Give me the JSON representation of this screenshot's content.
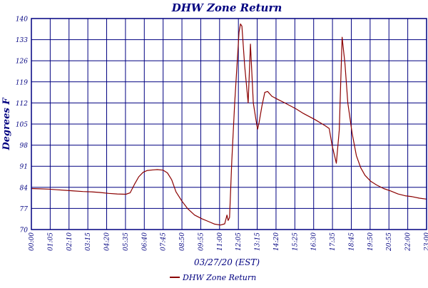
{
  "chart_data": {
    "type": "line",
    "title": "DHW Zone Return",
    "xlabel": "03/27/20 (EST)",
    "ylabel": "Degrees F",
    "x_unit": "HH:MM",
    "xlim": [
      "00:00",
      "23:00"
    ],
    "ylim": [
      70,
      140
    ],
    "yticks": [
      "70",
      "77",
      "84",
      "91",
      "98",
      "105",
      "112",
      "119",
      "126",
      "133",
      "140"
    ],
    "xticks": [
      "00:00",
      "01:05",
      "02:10",
      "03:15",
      "04:20",
      "05:35",
      "06:40",
      "07:45",
      "08:50",
      "09:55",
      "11:00",
      "12:05",
      "13:15",
      "14:20",
      "15:25",
      "16:30",
      "17:35",
      "18:45",
      "19:50",
      "20:55",
      "22:00",
      "23:00"
    ],
    "grid": true,
    "legend_position": "bottom-center",
    "colors": {
      "series": "#8b0000",
      "grid": "#000080",
      "text": "#000080"
    },
    "series": [
      {
        "name": "DHW Zone Return",
        "points": [
          [
            "00:00",
            83.6
          ],
          [
            "00:30",
            83.5
          ],
          [
            "01:00",
            83.4
          ],
          [
            "01:30",
            83.2
          ],
          [
            "02:00",
            83.0
          ],
          [
            "02:30",
            82.8
          ],
          [
            "03:00",
            82.6
          ],
          [
            "03:30",
            82.5
          ],
          [
            "04:00",
            82.3
          ],
          [
            "04:30",
            82.0
          ],
          [
            "05:00",
            81.8
          ],
          [
            "05:30",
            81.7
          ],
          [
            "05:45",
            82.2
          ],
          [
            "06:00",
            85.0
          ],
          [
            "06:15",
            87.5
          ],
          [
            "06:30",
            89.0
          ],
          [
            "06:45",
            89.6
          ],
          [
            "07:05",
            89.8
          ],
          [
            "07:20",
            89.9
          ],
          [
            "07:40",
            89.7
          ],
          [
            "07:55",
            88.8
          ],
          [
            "08:10",
            86.5
          ],
          [
            "08:25",
            82.5
          ],
          [
            "08:45",
            79.5
          ],
          [
            "09:05",
            77.0
          ],
          [
            "09:30",
            74.8
          ],
          [
            "09:55",
            73.6
          ],
          [
            "10:20",
            72.6
          ],
          [
            "10:40",
            71.8
          ],
          [
            "11:00",
            71.5
          ],
          [
            "11:15",
            71.9
          ],
          [
            "11:23",
            74.8
          ],
          [
            "11:27",
            73.0
          ],
          [
            "11:32",
            74.0
          ],
          [
            "11:40",
            93.0
          ],
          [
            "11:50",
            112.0
          ],
          [
            "12:05",
            135.5
          ],
          [
            "12:10",
            138.2
          ],
          [
            "12:15",
            137.5
          ],
          [
            "12:25",
            124.0
          ],
          [
            "12:37",
            112.0
          ],
          [
            "12:45",
            131.5
          ],
          [
            "12:55",
            112.0
          ],
          [
            "13:05",
            106.0
          ],
          [
            "13:10",
            103.3
          ],
          [
            "13:15",
            105.5
          ],
          [
            "13:25",
            111.0
          ],
          [
            "13:35",
            115.5
          ],
          [
            "13:45",
            115.8
          ],
          [
            "14:00",
            114.2
          ],
          [
            "14:20",
            113.2
          ],
          [
            "14:45",
            112.0
          ],
          [
            "15:25",
            110.0
          ],
          [
            "15:50",
            108.5
          ],
          [
            "16:30",
            106.5
          ],
          [
            "17:05",
            104.5
          ],
          [
            "17:20",
            103.5
          ],
          [
            "17:30",
            98.0
          ],
          [
            "17:40",
            94.0
          ],
          [
            "17:45",
            92.0
          ],
          [
            "17:55",
            103.0
          ],
          [
            "18:05",
            133.8
          ],
          [
            "18:15",
            125.0
          ],
          [
            "18:25",
            112.0
          ],
          [
            "18:40",
            102.0
          ],
          [
            "18:55",
            94.5
          ],
          [
            "19:10",
            90.5
          ],
          [
            "19:25",
            88.0
          ],
          [
            "19:45",
            86.0
          ],
          [
            "20:05",
            84.8
          ],
          [
            "20:30",
            83.6
          ],
          [
            "20:55",
            82.8
          ],
          [
            "21:20",
            81.8
          ],
          [
            "21:45",
            81.2
          ],
          [
            "22:10",
            80.9
          ],
          [
            "22:35",
            80.4
          ],
          [
            "23:00",
            80.1
          ]
        ]
      }
    ]
  }
}
